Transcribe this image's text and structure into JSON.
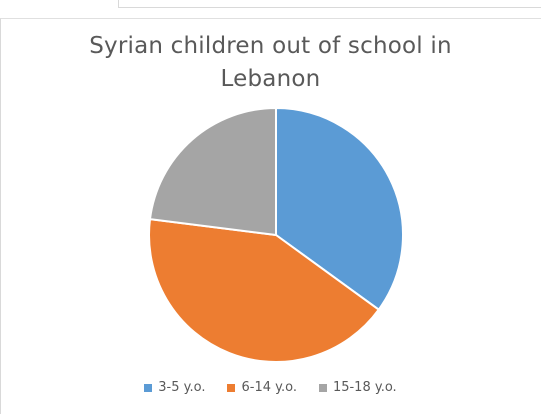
{
  "chart_data": {
    "type": "pie",
    "title_lines": [
      "Syrian children out of school in",
      "Lebanon"
    ],
    "categories": [
      "3-5 y.o.",
      "6-14 y.o.",
      "15-18 y.o."
    ],
    "values": [
      35,
      42,
      23
    ],
    "colors": [
      "#5b9bd5",
      "#ed7d31",
      "#a5a5a5"
    ],
    "start_angle_deg": 0,
    "legend_position": "bottom"
  }
}
